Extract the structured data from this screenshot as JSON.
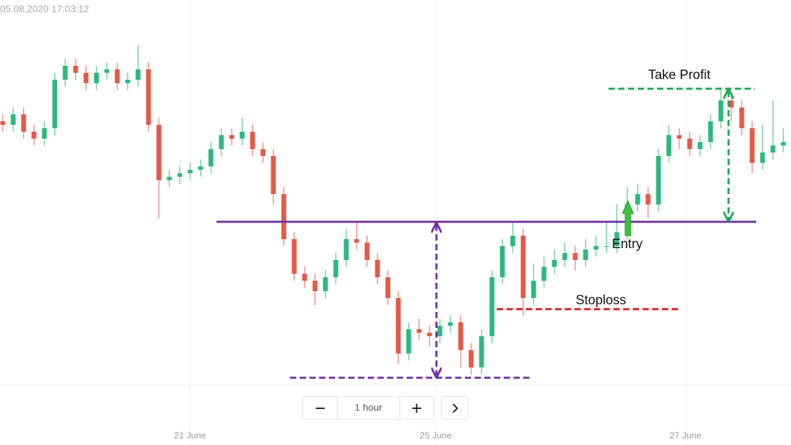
{
  "chart_data": {
    "type": "candlestick",
    "timestamp": "05.08.2020 17:03:12",
    "interval_label": "1 hour",
    "ylim": [
      0,
      111
    ],
    "xticks": [
      {
        "value": 18,
        "label": "21 June"
      },
      {
        "value": 41.6,
        "label": "25 June"
      },
      {
        "value": 65.6,
        "label": "27 June"
      }
    ],
    "up_color": "#2db87d",
    "down_color": "#e35a47",
    "open": [
      76,
      75,
      78,
      73,
      71,
      74,
      88,
      92,
      90,
      87,
      90,
      91,
      87,
      88,
      91,
      75,
      59,
      60,
      61,
      62,
      63,
      68,
      72,
      71,
      73,
      68,
      66,
      55,
      42,
      32,
      30,
      27,
      31,
      36,
      42,
      41,
      36,
      31,
      25,
      9,
      16,
      15,
      14,
      17,
      18,
      10,
      5,
      14,
      31,
      40,
      43,
      25,
      30,
      34,
      36,
      38,
      36,
      39,
      40,
      40,
      44,
      52,
      55,
      52,
      66,
      72,
      71,
      68,
      70,
      76,
      82,
      80,
      74,
      64,
      67,
      69
    ],
    "high": [
      78,
      80,
      80,
      75,
      76,
      90,
      94,
      94,
      92,
      92,
      93,
      93,
      90,
      98,
      93,
      77,
      62,
      63,
      64,
      65,
      70,
      74,
      74,
      77,
      75,
      70,
      68,
      57,
      44,
      34,
      32,
      33,
      38,
      45,
      47,
      43,
      38,
      33,
      27,
      18,
      19,
      17,
      19,
      20,
      20,
      12,
      16,
      33,
      42,
      47,
      45,
      35,
      37,
      39,
      41,
      40,
      42,
      43,
      47,
      52,
      57,
      58,
      57,
      68,
      75,
      74,
      73,
      72,
      78,
      85,
      84,
      82,
      76,
      75,
      82,
      74
    ],
    "low": [
      73,
      73,
      71,
      69,
      69,
      72,
      86,
      88,
      85,
      85,
      88,
      85,
      85,
      86,
      73,
      48,
      57,
      58,
      59,
      60,
      61,
      66,
      69,
      69,
      66,
      64,
      52,
      40,
      30,
      28,
      23,
      25,
      29,
      34,
      39,
      34,
      29,
      23,
      6,
      7,
      13,
      11,
      12,
      15,
      5,
      3,
      3,
      12,
      29,
      38,
      20,
      23,
      28,
      32,
      34,
      33,
      34,
      37,
      38,
      38,
      42,
      50,
      48,
      50,
      64,
      68,
      66,
      66,
      68,
      74,
      76,
      72,
      61,
      62,
      65,
      67
    ],
    "close": [
      75,
      78,
      73,
      71,
      74,
      88,
      92,
      90,
      87,
      90,
      91,
      87,
      88,
      91,
      75,
      59,
      60,
      61,
      62,
      63,
      68,
      72,
      71,
      73,
      68,
      66,
      55,
      42,
      32,
      30,
      27,
      31,
      36,
      42,
      41,
      36,
      31,
      25,
      9,
      16,
      15,
      14,
      17,
      18,
      10,
      5,
      14,
      31,
      40,
      43,
      25,
      30,
      34,
      36,
      38,
      36,
      39,
      40,
      40,
      44,
      52,
      55,
      52,
      66,
      72,
      71,
      68,
      70,
      76,
      82,
      80,
      74,
      64,
      67,
      69,
      70
    ],
    "resistance": 47,
    "support": 2,
    "annotations": [
      {
        "label": "Take Profit",
        "value": 85.4,
        "color": "#1fa855"
      },
      {
        "label": "Entry",
        "value": 47,
        "color": "#3cc43c"
      },
      {
        "label": "Stoploss",
        "value": 21.8,
        "color": "#e01818"
      }
    ],
    "level_color": "#7030a0"
  }
}
